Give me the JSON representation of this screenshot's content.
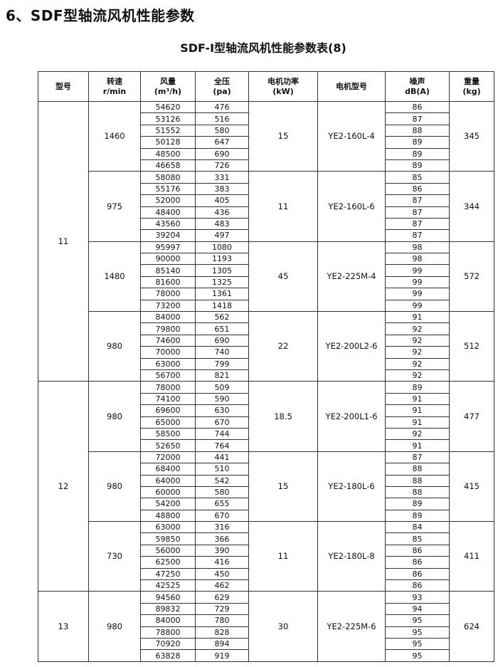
{
  "heading": "6、SDF型轴流风机性能参数",
  "table_title": "SDF-I型轴流风机性能参数表(8)",
  "headers": [
    {
      "line1": "型号",
      "line2": ""
    },
    {
      "line1": "转速",
      "line2": "r/min"
    },
    {
      "line1": "风量",
      "line2": "(m³/h)"
    },
    {
      "line1": "全压",
      "line2": "(pa)"
    },
    {
      "line1": "电机功率",
      "line2": "(kW)"
    },
    {
      "line1": "电机型号",
      "line2": ""
    },
    {
      "line1": "噪声",
      "line2": "dB(A)"
    },
    {
      "line1": "重量",
      "line2": "(kg)"
    }
  ],
  "models": [
    {
      "model": "11",
      "speeds": [
        {
          "speed": "1460",
          "power": "15",
          "motor": "YE2-160L-4",
          "weight": "345",
          "rows": [
            [
              "54620",
              "476",
              "86"
            ],
            [
              "53126",
              "516",
              "87"
            ],
            [
              "51552",
              "580",
              "88"
            ],
            [
              "50128",
              "647",
              "89"
            ],
            [
              "48500",
              "690",
              "89"
            ],
            [
              "46658",
              "726",
              "89"
            ]
          ]
        },
        {
          "speed": "975",
          "power": "11",
          "motor": "YE2-160L-6",
          "weight": "344",
          "rows": [
            [
              "58080",
              "331",
              "85"
            ],
            [
              "55176",
              "383",
              "86"
            ],
            [
              "52000",
              "405",
              "87"
            ],
            [
              "48400",
              "436",
              "87"
            ],
            [
              "43560",
              "483",
              "87"
            ],
            [
              "39204",
              "497",
              "87"
            ]
          ]
        },
        {
          "speed": "1480",
          "power": "45",
          "motor": "YE2-225M-4",
          "weight": "572",
          "rows": [
            [
              "95997",
              "1080",
              "98"
            ],
            [
              "90000",
              "1193",
              "98"
            ],
            [
              "85140",
              "1305",
              "99"
            ],
            [
              "81600",
              "1325",
              "99"
            ],
            [
              "78000",
              "1361",
              "99"
            ],
            [
              "73200",
              "1418",
              "99"
            ]
          ]
        },
        {
          "speed": "980",
          "power": "22",
          "motor": "YE2-200L2-6",
          "weight": "512",
          "rows": [
            [
              "84000",
              "562",
              "91"
            ],
            [
              "79800",
              "651",
              "92"
            ],
            [
              "74600",
              "690",
              "92"
            ],
            [
              "70000",
              "740",
              "92"
            ],
            [
              "63000",
              "799",
              "92"
            ],
            [
              "56700",
              "821",
              "92"
            ]
          ]
        }
      ]
    },
    {
      "model": "12",
      "speeds": [
        {
          "speed": "980",
          "power": "18.5",
          "motor": "YE2-200L1-6",
          "weight": "477",
          "rows": [
            [
              "78000",
              "509",
              "89"
            ],
            [
              "74100",
              "590",
              "91"
            ],
            [
              "69600",
              "630",
              "91"
            ],
            [
              "65000",
              "670",
              "91"
            ],
            [
              "58500",
              "744",
              "92"
            ],
            [
              "52650",
              "764",
              "91"
            ]
          ]
        },
        {
          "speed": "980",
          "power": "15",
          "motor": "YE2-180L-6",
          "weight": "415",
          "rows": [
            [
              "72000",
              "441",
              "87"
            ],
            [
              "68400",
              "510",
              "88"
            ],
            [
              "64000",
              "542",
              "88"
            ],
            [
              "60000",
              "580",
              "88"
            ],
            [
              "54200",
              "655",
              "89"
            ],
            [
              "48800",
              "670",
              "89"
            ]
          ]
        },
        {
          "speed": "730",
          "power": "11",
          "motor": "YE2-180L-8",
          "weight": "411",
          "rows": [
            [
              "63000",
              "316",
              "84"
            ],
            [
              "59850",
              "366",
              "85"
            ],
            [
              "56000",
              "390",
              "86"
            ],
            [
              "62500",
              "416",
              "86"
            ],
            [
              "47250",
              "450",
              "86"
            ],
            [
              "42525",
              "462",
              "86"
            ]
          ]
        }
      ]
    },
    {
      "model": "13",
      "speeds": [
        {
          "speed": "980",
          "power": "30",
          "motor": "YE2-225M-6",
          "weight": "624",
          "rows": [
            [
              "94560",
              "629",
              "93"
            ],
            [
              "89832",
              "729",
              "94"
            ],
            [
              "84000",
              "780",
              "95"
            ],
            [
              "78800",
              "828",
              "95"
            ],
            [
              "70920",
              "894",
              "95"
            ],
            [
              "63828",
              "919",
              "95"
            ]
          ]
        }
      ]
    }
  ]
}
